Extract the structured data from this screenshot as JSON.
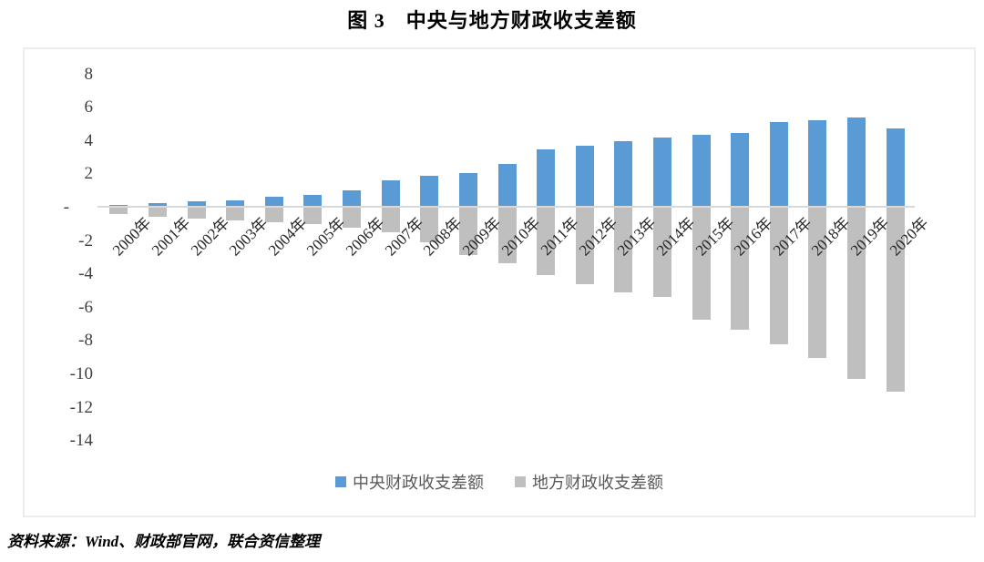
{
  "page": {
    "title": "图 3　中央与地方财政收支差额",
    "source_note": "资料来源：Wind、财政部官网，联合资信整理"
  },
  "chart_data": {
    "type": "bar",
    "title": "图 3　中央与地方财政收支差额",
    "categories": [
      "2000年",
      "2001年",
      "2002年",
      "2003年",
      "2004年",
      "2005年",
      "2006年",
      "2007年",
      "2008年",
      "2009年",
      "2010年",
      "2011年",
      "2012年",
      "2013年",
      "2014年",
      "2015年",
      "2016年",
      "2017年",
      "2018年",
      "2019年",
      "2020年"
    ],
    "series": [
      {
        "name": "中央财政收支差额",
        "color": "#5B9BD5",
        "values": [
          0.15,
          0.28,
          0.36,
          0.44,
          0.66,
          0.78,
          1.05,
          1.63,
          1.93,
          2.07,
          2.65,
          3.48,
          3.74,
          3.97,
          4.19,
          4.37,
          4.5,
          5.13,
          5.27,
          5.42,
          4.77
        ]
      },
      {
        "name": "地方财政收支差额",
        "color": "#BFBFBF",
        "values": [
          -0.4,
          -0.53,
          -0.68,
          -0.74,
          -0.87,
          -1.01,
          -1.21,
          -1.48,
          -2.06,
          -2.84,
          -3.33,
          -4.02,
          -4.61,
          -5.07,
          -5.33,
          -6.73,
          -7.31,
          -8.18,
          -9.03,
          -10.27,
          -11.04
        ]
      }
    ],
    "xlabel": "",
    "ylabel": "",
    "ylim": [
      -14,
      8
    ],
    "grid": false,
    "legend_position": "bottom",
    "y_ticks": {
      "values": [
        8,
        6,
        4,
        2,
        0,
        -2,
        -4,
        -6,
        -8,
        -10,
        -12,
        -14
      ],
      "labels": [
        "8",
        "6",
        "4",
        "2",
        "-",
        "-2",
        "-4",
        "-6",
        "-8",
        "-10",
        "-12",
        "-14"
      ]
    },
    "axis_colors": {
      "zero_line": "#d9d9d9",
      "frame_border": "#ececec"
    }
  }
}
